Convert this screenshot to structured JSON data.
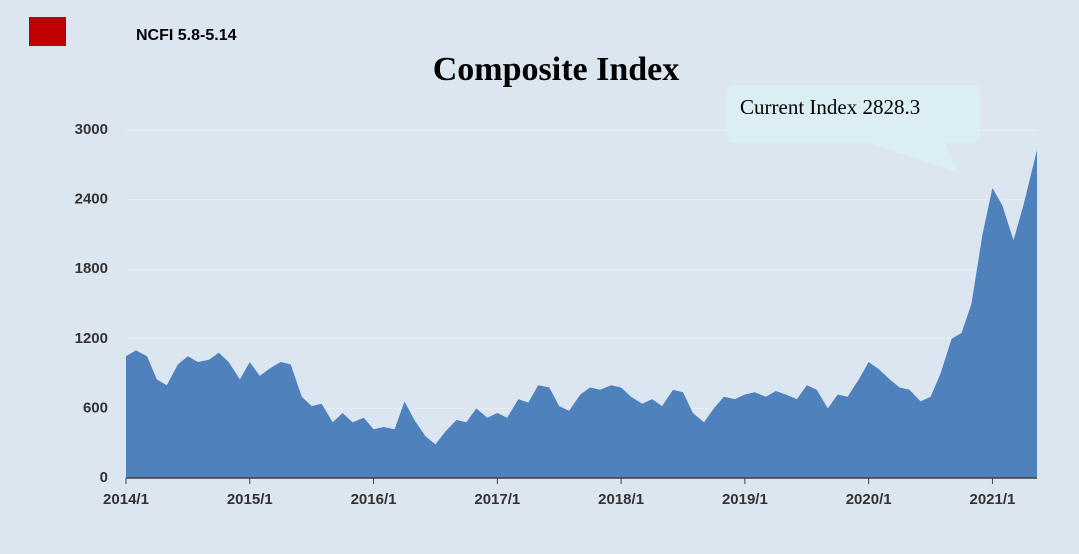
{
  "chart_data": {
    "type": "area",
    "title": "Composite Index",
    "subtitle": "NCFI 5.8-5.14",
    "annotation": "Current Index 2828.3",
    "color": "#4f81bd",
    "x": [
      2014,
      2014.08,
      2014.17,
      2014.25,
      2014.33,
      2014.42,
      2014.5,
      2014.58,
      2014.67,
      2014.75,
      2014.83,
      2014.92,
      2015,
      2015.08,
      2015.17,
      2015.25,
      2015.33,
      2015.42,
      2015.5,
      2015.58,
      2015.67,
      2015.75,
      2015.83,
      2015.92,
      2016,
      2016.08,
      2016.17,
      2016.25,
      2016.33,
      2016.42,
      2016.5,
      2016.58,
      2016.67,
      2016.75,
      2016.83,
      2016.92,
      2017,
      2017.08,
      2017.17,
      2017.25,
      2017.33,
      2017.42,
      2017.5,
      2017.58,
      2017.67,
      2017.75,
      2017.83,
      2017.92,
      2018,
      2018.08,
      2018.17,
      2018.25,
      2018.33,
      2018.42,
      2018.5,
      2018.58,
      2018.67,
      2018.75,
      2018.83,
      2018.92,
      2019,
      2019.08,
      2019.17,
      2019.25,
      2019.33,
      2019.42,
      2019.5,
      2019.58,
      2019.67,
      2019.75,
      2019.83,
      2019.92,
      2020,
      2020.08,
      2020.17,
      2020.25,
      2020.33,
      2020.42,
      2020.5,
      2020.58,
      2020.67,
      2020.75,
      2020.83,
      2020.92,
      2021,
      2021.08,
      2021.17,
      2021.25,
      2021.36
    ],
    "values": [
      1050,
      1100,
      1050,
      850,
      800,
      980,
      1050,
      1000,
      1020,
      1080,
      1000,
      850,
      1000,
      880,
      950,
      1000,
      980,
      700,
      620,
      640,
      480,
      560,
      480,
      520,
      420,
      440,
      420,
      660,
      500,
      360,
      290,
      400,
      500,
      480,
      600,
      520,
      560,
      520,
      680,
      650,
      800,
      780,
      620,
      580,
      720,
      780,
      760,
      800,
      780,
      700,
      640,
      680,
      620,
      760,
      740,
      560,
      480,
      600,
      700,
      680,
      720,
      740,
      700,
      750,
      720,
      680,
      800,
      760,
      600,
      720,
      700,
      850,
      1000,
      940,
      850,
      780,
      760,
      660,
      700,
      900,
      1200,
      1250,
      1500,
      2100,
      2500,
      2350,
      2050,
      2350,
      2828.3
    ],
    "xlim": [
      2014,
      2021.36
    ],
    "xticks": [
      {
        "value": 2014,
        "label": "2014/1"
      },
      {
        "value": 2015,
        "label": "2015/1"
      },
      {
        "value": 2016,
        "label": "2016/1"
      },
      {
        "value": 2017,
        "label": "2017/1"
      },
      {
        "value": 2018,
        "label": "2018/1"
      },
      {
        "value": 2019,
        "label": "2019/1"
      },
      {
        "value": 2020,
        "label": "2020/1"
      },
      {
        "value": 2021,
        "label": "2021/1"
      }
    ],
    "ylim": [
      0,
      3000
    ],
    "yticks": [
      0,
      600,
      1200,
      1800,
      2400,
      3000
    ],
    "grid": true
  }
}
